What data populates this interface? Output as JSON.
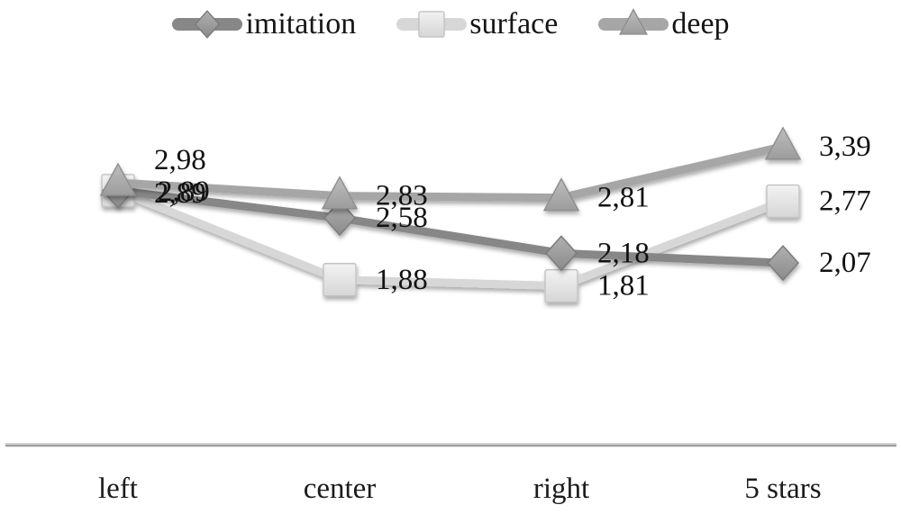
{
  "chart_data": {
    "type": "line",
    "title": "",
    "xlabel": "",
    "ylabel": "",
    "categories": [
      "left",
      "center",
      "right",
      "5 stars"
    ],
    "series": [
      {
        "name": "imitation",
        "marker": "diamond",
        "color": "#878787",
        "marker_fill_light": "#b0b0b0",
        "marker_fill_dark": "#8a8a8a",
        "marker_stroke": "#7a7a7a",
        "values": [
          2.89,
          2.58,
          2.18,
          2.07
        ],
        "labels": [
          "2,89",
          "2,58",
          "2,18",
          "2,07"
        ]
      },
      {
        "name": "surface",
        "marker": "square",
        "color": "#d7d7d7",
        "marker_fill_light": "#f2f2f2",
        "marker_fill_dark": "#d6d6d6",
        "marker_stroke": "#c2c2c2",
        "values": [
          2.89,
          1.88,
          1.81,
          2.77
        ],
        "labels": [
          "2,89",
          "1,88",
          "1,81",
          "2,77"
        ]
      },
      {
        "name": "deep",
        "marker": "triangle",
        "color": "#a6a6a6",
        "marker_fill_light": "#bdbdbd",
        "marker_fill_dark": "#9c9c9c",
        "marker_stroke": "#8e8e8e",
        "values": [
          2.98,
          2.83,
          2.81,
          3.39
        ],
        "labels": [
          "2,98",
          "2,83",
          "2,81",
          "3,39"
        ]
      }
    ],
    "legend": {
      "position": "top",
      "entries": [
        "imitation",
        "surface",
        "deep"
      ]
    },
    "axes": {
      "y_axis_visible": false,
      "gridlines": false,
      "x_baseline_visible": true,
      "baseline_color": "#9e9e9e",
      "ylim": [
        0,
        4
      ]
    },
    "value_format": "comma-decimal",
    "text_color": "#161616",
    "background": "#ffffff"
  }
}
